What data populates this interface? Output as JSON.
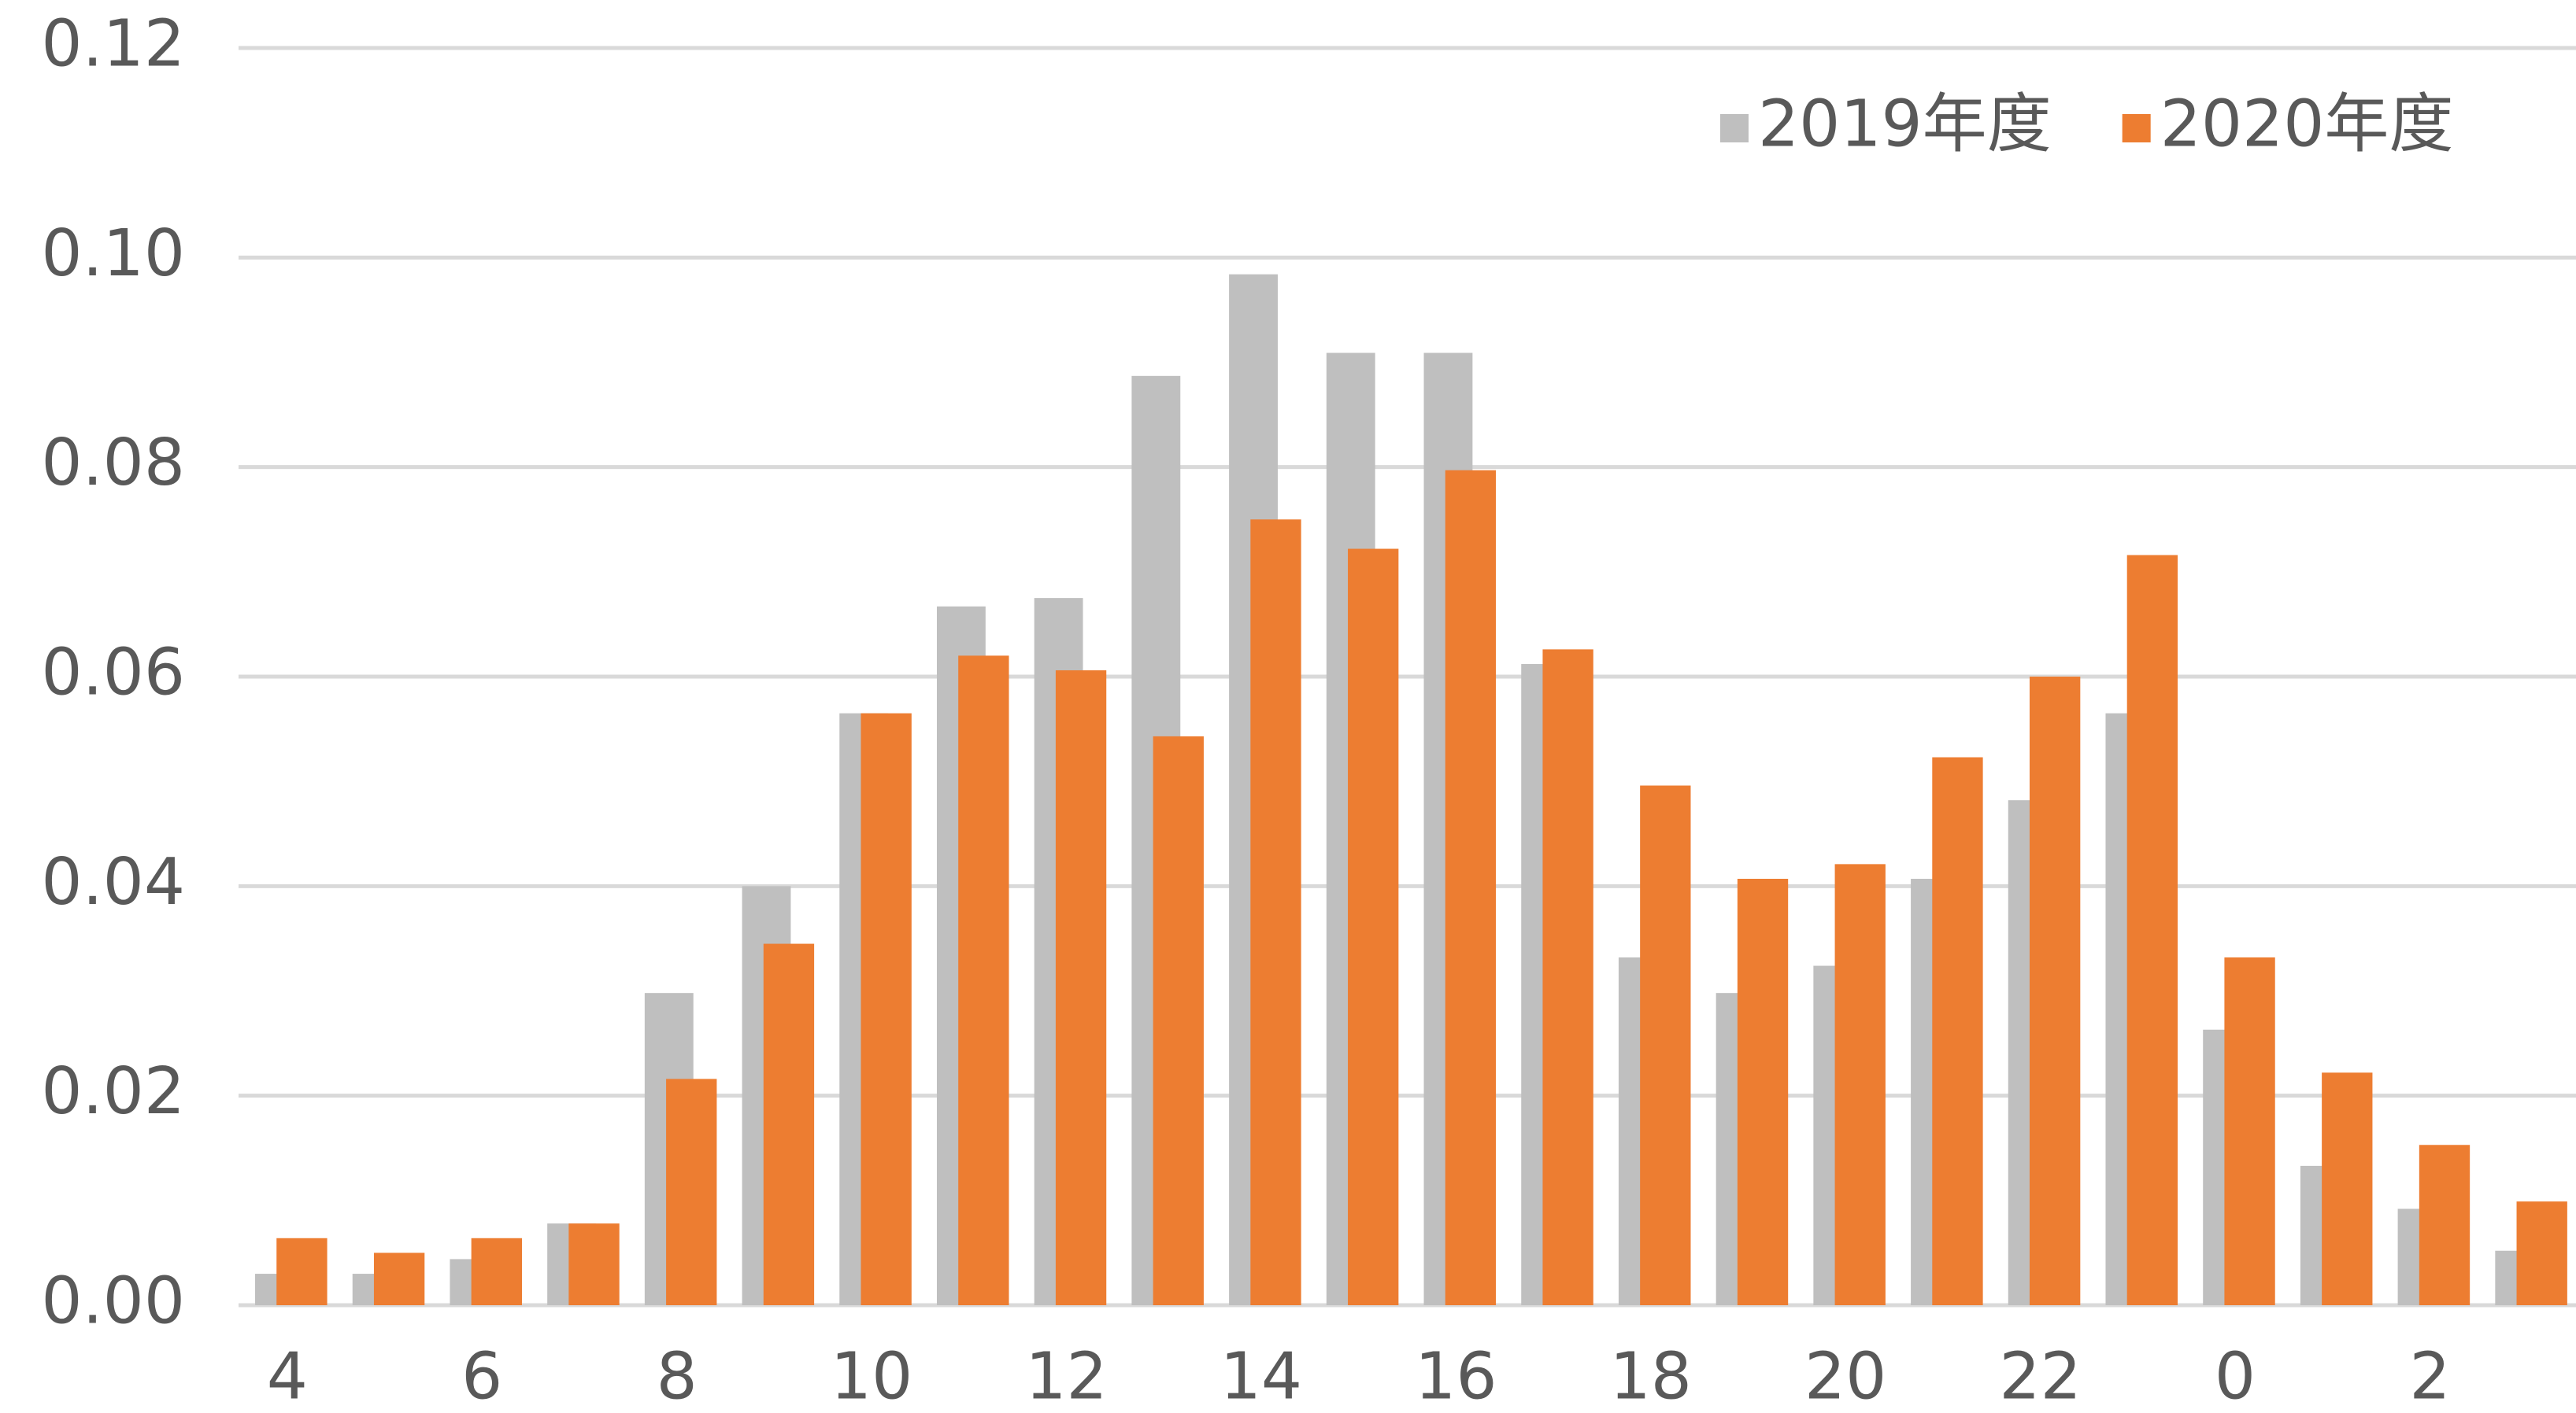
{
  "chart_data": {
    "type": "bar",
    "categories": [
      "4",
      null,
      "6",
      null,
      "8",
      null,
      "10",
      null,
      "12",
      null,
      "14",
      null,
      "16",
      null,
      "18",
      null,
      "20",
      null,
      "22",
      null,
      "0",
      null,
      "2",
      null
    ],
    "series": [
      {
        "name": "2019年度",
        "color": "#bfbfbf",
        "values": [
          0.003,
          0.003,
          0.0044,
          0.0078,
          0.0298,
          0.04,
          0.0565,
          0.0667,
          0.0675,
          0.0887,
          0.0984,
          0.0909,
          0.0909,
          0.0612,
          0.0332,
          0.0298,
          0.0324,
          0.0407,
          0.0482,
          0.0565,
          0.0263,
          0.0133,
          0.0092,
          0.0052
        ]
      },
      {
        "name": "2020年度",
        "color": "#ed7d31",
        "values": [
          0.0064,
          0.005,
          0.0064,
          0.0078,
          0.0216,
          0.0345,
          0.0565,
          0.062,
          0.0606,
          0.0543,
          0.075,
          0.0722,
          0.0797,
          0.0626,
          0.0496,
          0.0407,
          0.0421,
          0.0523,
          0.06,
          0.0716,
          0.0332,
          0.0222,
          0.0153,
          0.0099
        ]
      }
    ],
    "ylim": [
      0,
      0.12
    ],
    "yticks": [
      {
        "value": 0,
        "label": "0.00"
      },
      0.02,
      0.04,
      0.06,
      0.08,
      {
        "value": 0.1,
        "label": "0.10"
      },
      0.12
    ],
    "grid": true,
    "legend": "upper right"
  }
}
